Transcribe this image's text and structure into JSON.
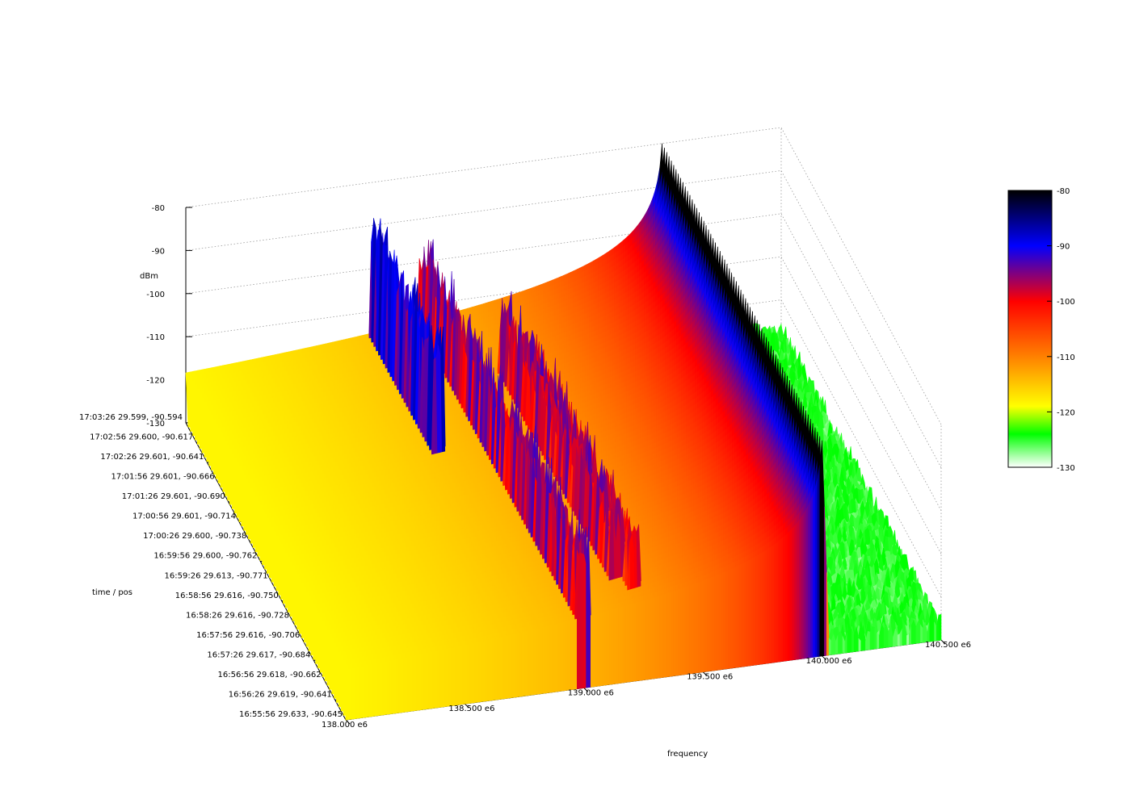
{
  "chart_data": {
    "type": "surface-3d",
    "title": "",
    "xlabel": "frequency",
    "ylabel": "time / pos",
    "zlabel": "dBm",
    "x_ticks": [
      "138.000 e6",
      "138.500 e6",
      "139.000 e6",
      "139.500 e6",
      "140.000 e6",
      "140.500 e6"
    ],
    "x_tick_values": [
      138000000,
      138500000,
      139000000,
      139500000,
      140000000,
      140500000
    ],
    "xlim": [
      138000000,
      140500000
    ],
    "y_ticks": [
      "17:03:26 29.599, -90.594",
      "17:02:56 29.600, -90.617",
      "17:02:26 29.601, -90.641",
      "17:01:56 29.601, -90.666",
      "17:01:26 29.601, -90.690",
      "17:00:56 29.601, -90.714",
      "17:00:26 29.600, -90.738",
      "16:59:56 29.600, -90.762",
      "16:59:26 29.613, -90.771",
      "16:58:56 29.616, -90.750",
      "16:58:26 29.616, -90.728",
      "16:57:56 29.616, -90.706",
      "16:57:26 29.617, -90.684",
      "16:56:56 29.618, -90.662",
      "16:56:26 29.619, -90.641",
      "16:55:56 29.633, -90.645"
    ],
    "z_ticks": [
      "-80",
      "-90",
      "-100",
      "-110",
      "-120",
      "-130"
    ],
    "z_tick_values": [
      -80,
      -90,
      -100,
      -110,
      -120,
      -130
    ],
    "zlim": [
      -130,
      -80
    ],
    "noise_floor": -126,
    "features": [
      {
        "freq": 140000000,
        "peak": -80,
        "width": 30000,
        "span": "all times"
      },
      {
        "freq": 139000000,
        "peak": -108,
        "width": 25000,
        "span": "first half"
      },
      {
        "freq": 138800000,
        "peak": -101,
        "width": 20000,
        "span": "latest"
      },
      {
        "freq": 139200000,
        "peak": -108,
        "width": 20000,
        "span": "middle"
      },
      {
        "freq": 138900000,
        "peak": -122,
        "width": 300000,
        "span": "curved band"
      }
    ],
    "colorbar": {
      "min": -130,
      "max": -80,
      "ticks": [
        "-80",
        "-90",
        "-100",
        "-110",
        "-120",
        "-130"
      ],
      "colors": [
        "#ffffff",
        "#00ff00",
        "#ffff00",
        "#ff8000",
        "#ff0000",
        "#0000ff",
        "#000000"
      ]
    }
  }
}
